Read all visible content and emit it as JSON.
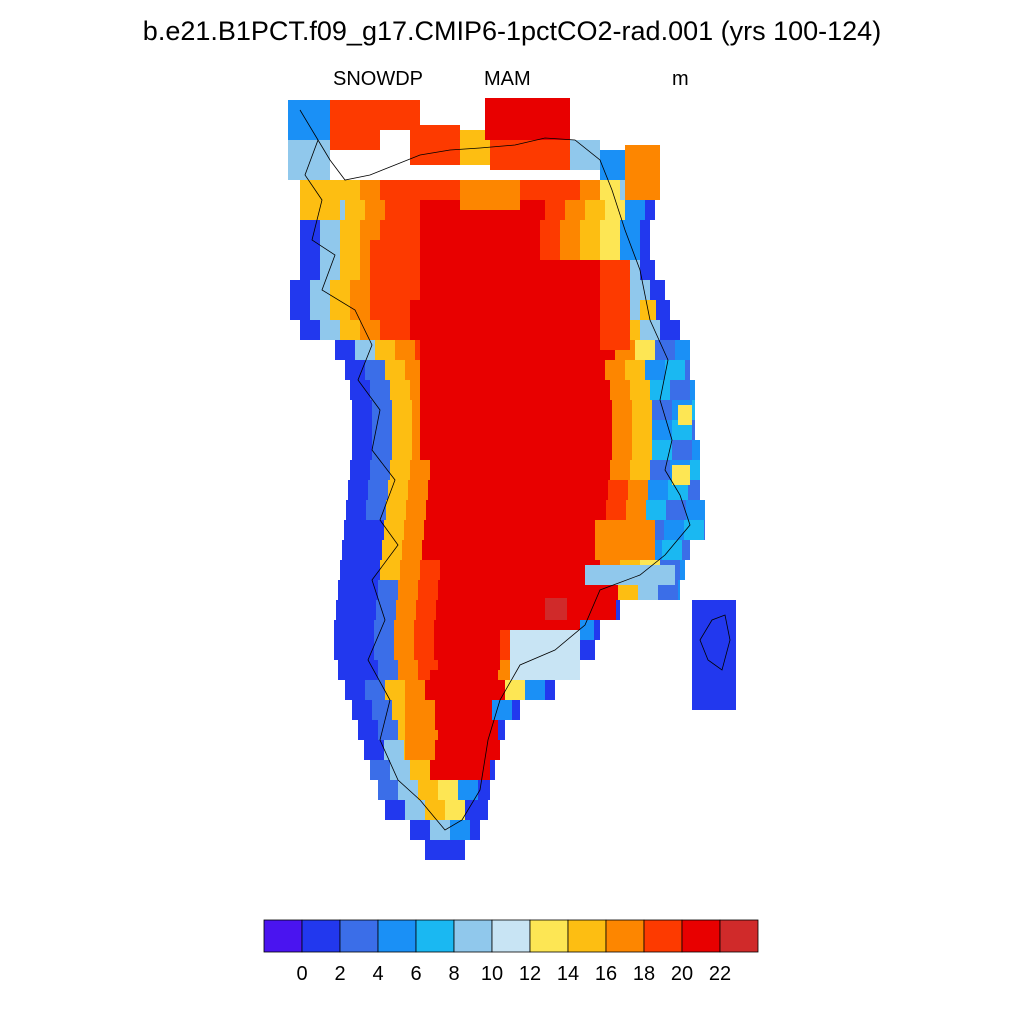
{
  "title": "b.e21.B1PCT.f09_g17.CMIP6-1pctCO2-rad.001 (yrs 100-124)",
  "subtitle": {
    "variable": "SNOWDP",
    "season": "MAM",
    "units": "m"
  },
  "colorbar": {
    "colors": [
      "#4a14f0",
      "#2238ee",
      "#3b6ee8",
      "#1a90f6",
      "#1ab8f2",
      "#90c8ec",
      "#c8e4f4",
      "#fde654",
      "#fdbe12",
      "#fd8600",
      "#fd3a00",
      "#e80000",
      "#d02a2a"
    ],
    "tick_labels": [
      "0",
      "2",
      "4",
      "6",
      "8",
      "10",
      "12",
      "14",
      "16",
      "18",
      "20",
      "22"
    ]
  }
}
